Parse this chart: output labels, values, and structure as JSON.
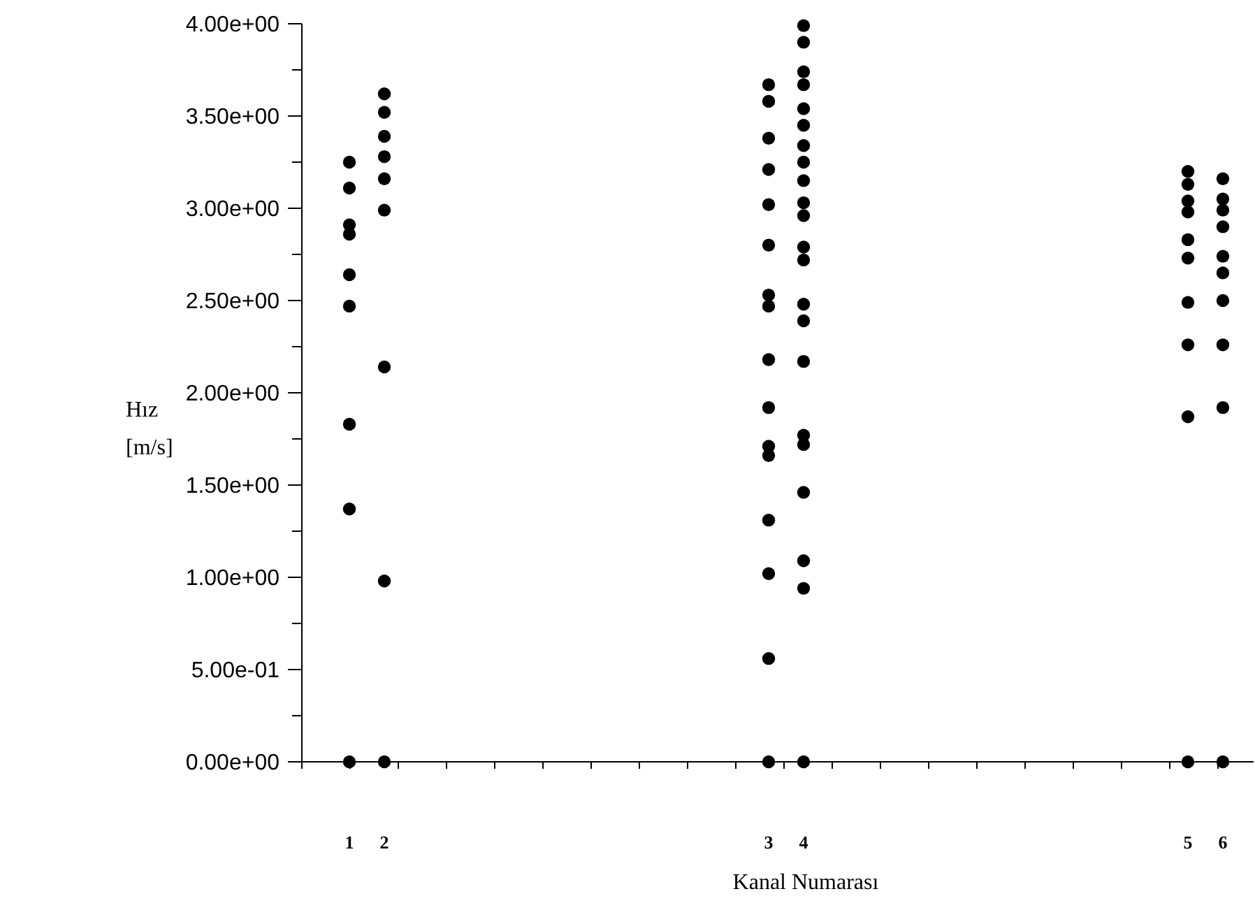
{
  "chart_data": {
    "type": "scatter",
    "xlabel": "Kanal Numarası",
    "ylabel": "Hız [m/s]",
    "marker": "circle",
    "grid": false,
    "categories": [
      "1",
      "2",
      null,
      null,
      null,
      null,
      null,
      null,
      null,
      null,
      null,
      null,
      "3",
      "4",
      null,
      null,
      null,
      null,
      null,
      null,
      null,
      null,
      null,
      null,
      "5",
      "6"
    ],
    "ylim": [
      0,
      4
    ],
    "yticks": [
      {
        "value": 0,
        "label": "0.00e+00"
      },
      {
        "value": 0.25,
        "label": null
      },
      {
        "value": 0.5,
        "label": "5.00e-01"
      },
      {
        "value": 0.75,
        "label": null
      },
      {
        "value": 1,
        "label": "1.00e+00"
      },
      {
        "value": 1.25,
        "label": null
      },
      {
        "value": 1.5,
        "label": "1.50e+00"
      },
      {
        "value": 1.75,
        "label": null
      },
      {
        "value": 2,
        "label": "2.00e+00"
      },
      {
        "value": 2.25,
        "label": null
      },
      {
        "value": 2.5,
        "label": "2.50e+00"
      },
      {
        "value": 2.75,
        "label": null
      },
      {
        "value": 3,
        "label": "3.00e+00"
      },
      {
        "value": 3.25,
        "label": null
      },
      {
        "value": 3.5,
        "label": "3.50e+00"
      },
      {
        "value": 3.75,
        "label": null
      },
      {
        "value": 4,
        "label": "4.00e+00"
      }
    ],
    "series": [
      {
        "color": "#000000",
        "x": [
          "1",
          "1",
          "1",
          "1",
          "1",
          "1",
          "1",
          "1",
          "1",
          "2",
          "2",
          "2",
          "2",
          "2",
          "2",
          "2",
          "2",
          "2",
          "3",
          "3",
          "3",
          "3",
          "3",
          "3",
          "3",
          "3",
          "3",
          "3",
          "3",
          "3",
          "3",
          "3",
          "3",
          "3",
          "4",
          "4",
          "4",
          "4",
          "4",
          "4",
          "4",
          "4",
          "4",
          "4",
          "4",
          "4",
          "4",
          "4",
          "4",
          "4",
          "4",
          "4",
          "4",
          "4",
          "4",
          "4",
          "5",
          "5",
          "5",
          "5",
          "5",
          "5",
          "5",
          "5",
          "5",
          "5",
          "6",
          "6",
          "6",
          "6",
          "6",
          "6",
          "6",
          "6",
          "6",
          "6"
        ],
        "values": [
          3.25,
          3.11,
          2.91,
          2.86,
          2.64,
          2.47,
          1.83,
          1.37,
          0,
          3.62,
          3.52,
          3.39,
          3.28,
          3.16,
          2.99,
          2.14,
          0.98,
          0,
          3.67,
          3.58,
          3.38,
          3.21,
          3.02,
          2.8,
          2.53,
          2.47,
          2.18,
          1.92,
          1.71,
          1.66,
          1.31,
          1.02,
          0.56,
          0,
          3.99,
          3.9,
          3.74,
          3.67,
          3.54,
          3.45,
          3.34,
          3.25,
          3.15,
          3.03,
          2.96,
          2.79,
          2.72,
          2.48,
          2.39,
          2.17,
          1.77,
          1.72,
          1.46,
          1.09,
          0.94,
          0,
          3.2,
          3.13,
          3.04,
          2.98,
          2.83,
          2.73,
          2.49,
          2.26,
          1.87,
          0,
          3.16,
          3.05,
          2.99,
          2.9,
          2.74,
          2.65,
          2.5,
          2.26,
          1.92,
          0
        ]
      }
    ]
  }
}
